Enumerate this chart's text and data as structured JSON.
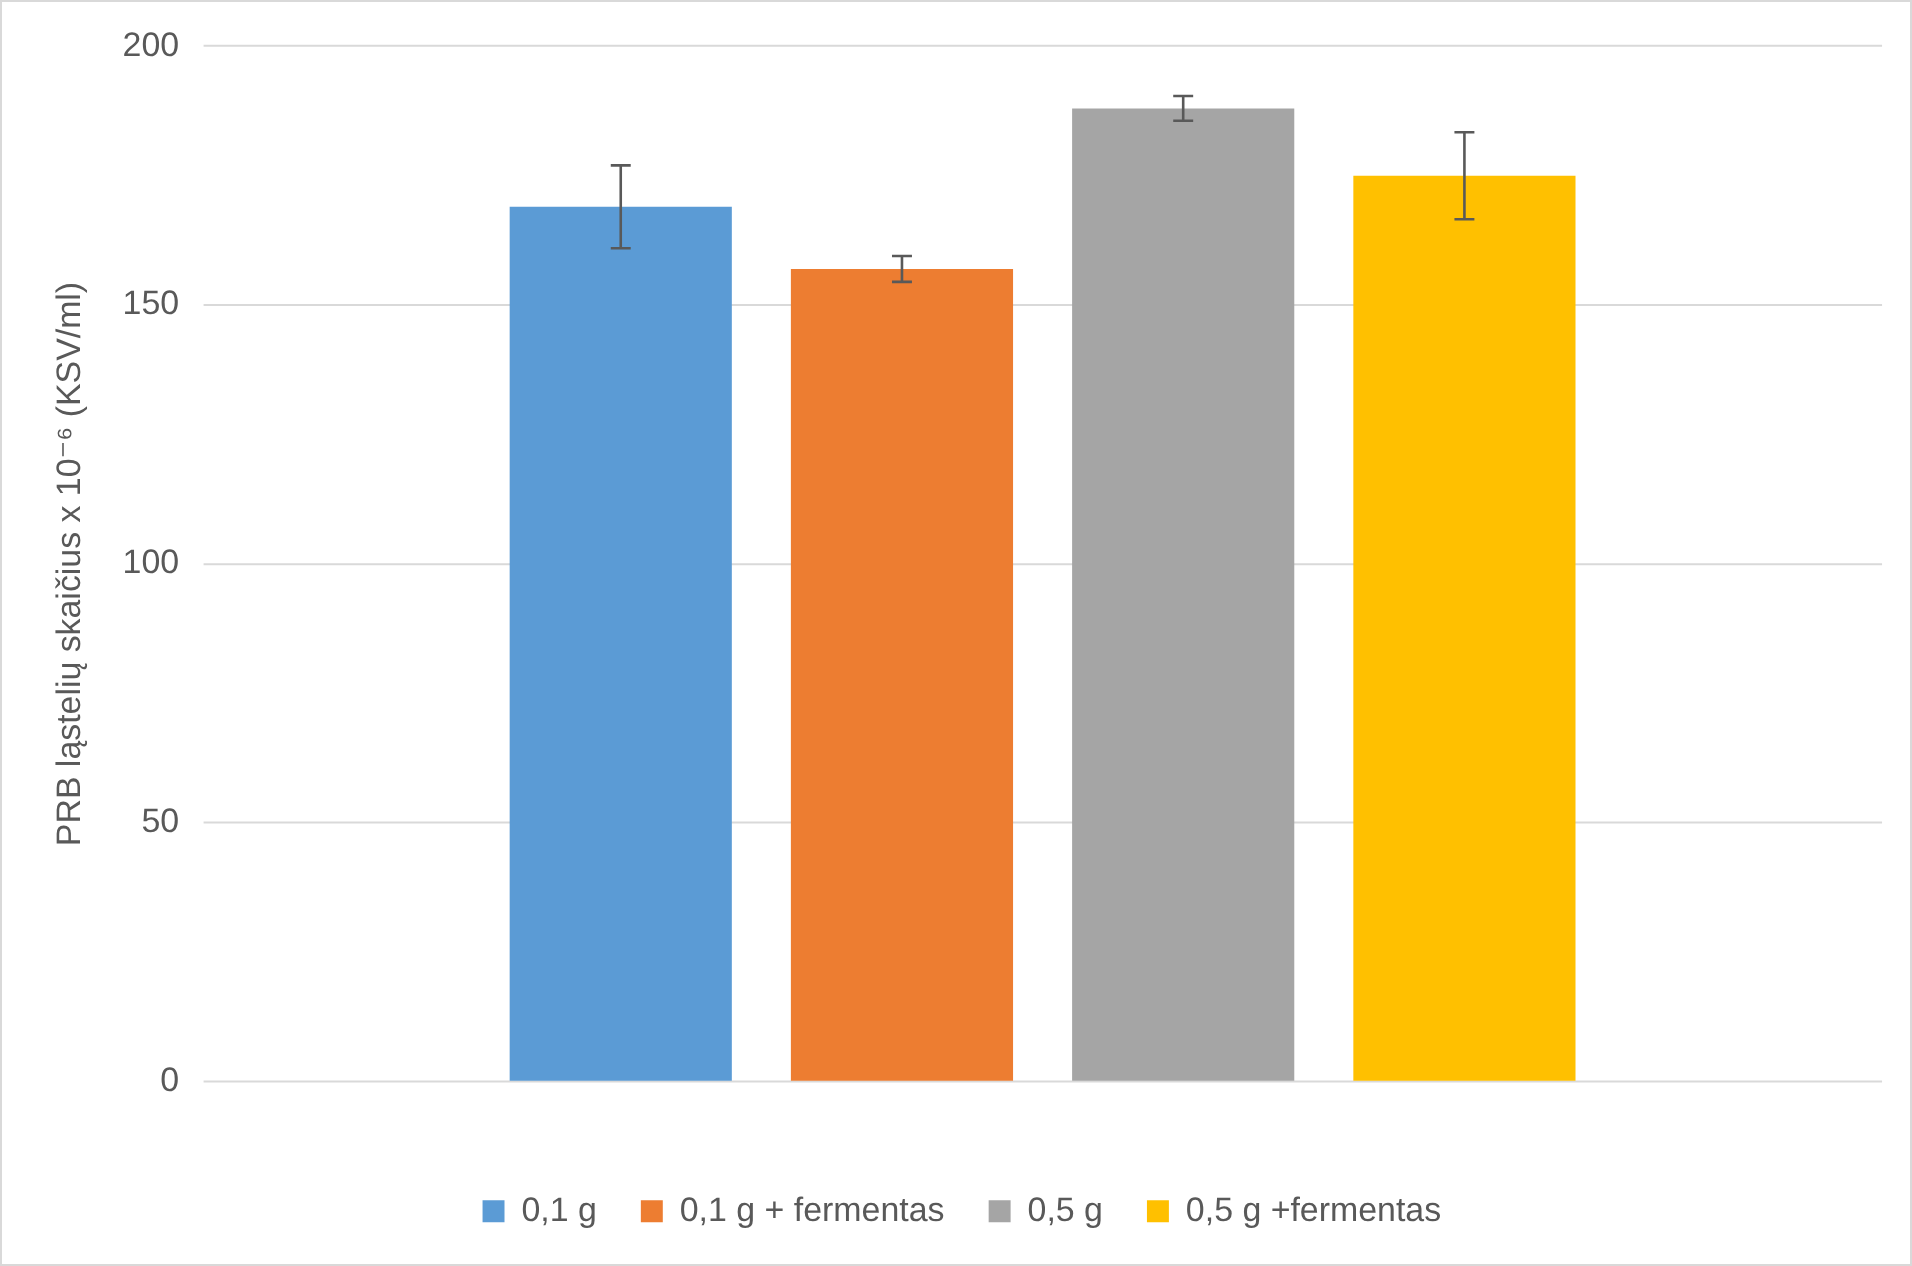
{
  "chart_data": {
    "type": "bar",
    "ylabel": "PRB ląstelių skaičius x 10⁻⁶ (KSV/ml)",
    "categories": [
      null
    ],
    "series": [
      {
        "name": "0,1 g",
        "color": "#5b9bd5",
        "values": [
          169
        ],
        "errors": [
          8
        ]
      },
      {
        "name": "0,1 g + fermentas",
        "color": "#ed7d31",
        "values": [
          157
        ],
        "errors": [
          2.5
        ]
      },
      {
        "name": "0,5 g",
        "color": "#a5a5a5",
        "values": [
          188
        ],
        "errors": [
          2.4
        ]
      },
      {
        "name": "0,5 g +fermentas",
        "color": "#ffc000",
        "values": [
          175
        ],
        "errors": [
          8.4
        ]
      }
    ],
    "ylim": [
      0,
      200
    ],
    "yticks": [
      0,
      50,
      100,
      150,
      200
    ],
    "grid": "y",
    "legend": "bottom"
  }
}
